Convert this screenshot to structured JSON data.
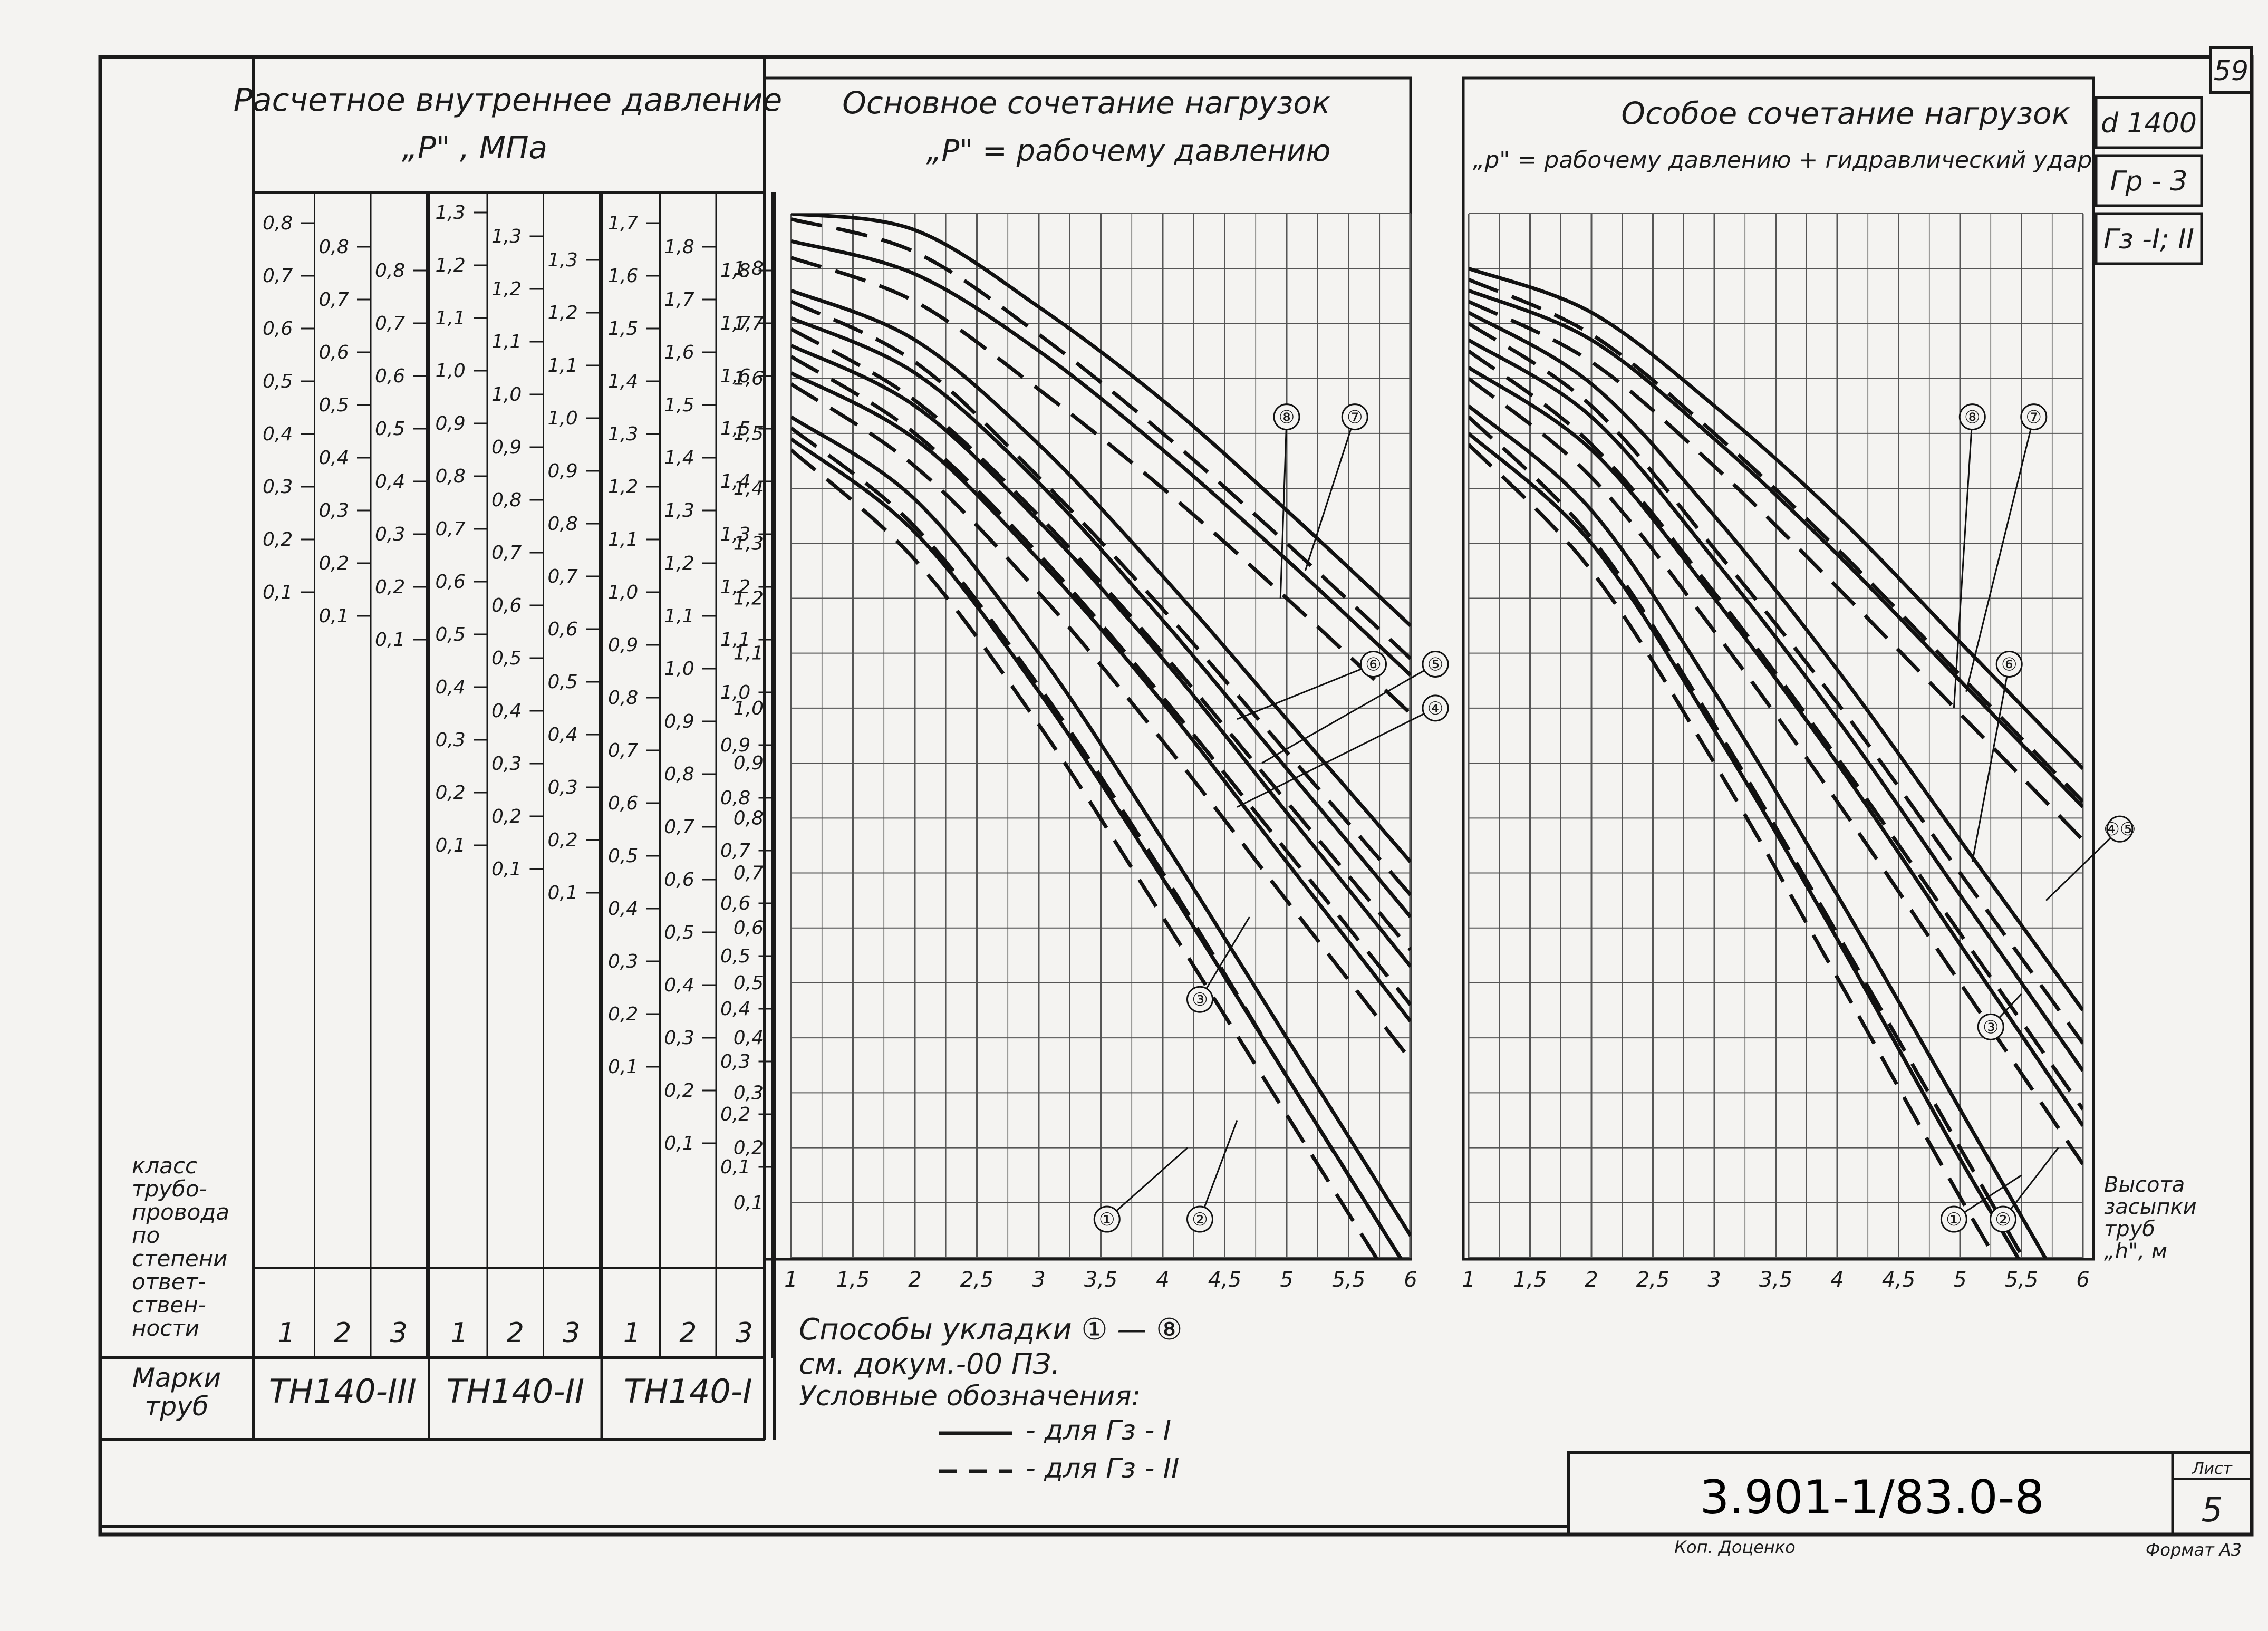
{
  "sheet": {
    "page_number": "59",
    "designation": "3.901-1/83.0-8",
    "sheet_label": "Лист",
    "sheet_number": "5",
    "author": "Коп. Доценко",
    "format": "Формат А3"
  },
  "right_header": [
    "d 1400",
    "Гр - 3",
    "Гз -I; II"
  ],
  "pressure_panel": {
    "title_line1": "Расчетное внутреннее давление",
    "title_line2": "„Р\" , МПа"
  },
  "left_labels": {
    "class_label": [
      "класс",
      "трубо-",
      "провода",
      "по",
      "степени",
      "ответ-",
      "ствен-",
      "ности"
    ],
    "marks_label": [
      "Марки",
      "труб"
    ]
  },
  "pipe_groups": [
    {
      "mark": "ТН140-III",
      "classes": [
        "1",
        "2",
        "3"
      ],
      "scales": [
        [
          "0,8",
          "0,7",
          "0,6",
          "0,5",
          "0,4",
          "0,3",
          "0,2",
          "0,1"
        ],
        [
          "0,8",
          "0,7",
          "0,6",
          "0,5",
          "0,4",
          "0,3",
          "0,2",
          "0,1"
        ],
        [
          "0,8",
          "0,7",
          "0,6",
          "0,5",
          "0,4",
          "0,3",
          "0,2",
          "0,1"
        ]
      ]
    },
    {
      "mark": "ТН140-II",
      "classes": [
        "1",
        "2",
        "3"
      ],
      "scales": [
        [
          "1,3",
          "1,2",
          "1,1",
          "1,0",
          "0,9",
          "0,8",
          "0,7",
          "0,6",
          "0,5",
          "0,4",
          "0,3",
          "0,2",
          "0,1"
        ],
        [
          "1,3",
          "1,2",
          "1,1",
          "1,0",
          "0,9",
          "0,8",
          "0,7",
          "0,6",
          "0,5",
          "0,4",
          "0,3",
          "0,2",
          "0,1"
        ],
        [
          "1,3",
          "1,2",
          "1,1",
          "1,0",
          "0,9",
          "0,8",
          "0,7",
          "0,6",
          "0,5",
          "0,4",
          "0,3",
          "0,2",
          "0,1"
        ]
      ]
    },
    {
      "mark": "ТН140-I",
      "classes": [
        "1",
        "2",
        "3"
      ],
      "scales": [
        [
          "1,7",
          "1,6",
          "1,5",
          "1,4",
          "1,3",
          "1,2",
          "1,1",
          "1,0",
          "0,9",
          "0,8",
          "0,7",
          "0,6",
          "0,5",
          "0,4",
          "0,3",
          "0,2",
          "0,1"
        ],
        [
          "1,8",
          "1,7",
          "1,6",
          "1,5",
          "1,4",
          "1,3",
          "1,2",
          "1,1",
          "1,0",
          "0,9",
          "0,8",
          "0,7",
          "0,6",
          "0,5",
          "0,4",
          "0,3",
          "0,2",
          "0,1"
        ],
        [
          "1,8",
          "1,7",
          "1,6",
          "1,5",
          "1,4",
          "1,3",
          "1,2",
          "1,1",
          "1,0",
          "0,9",
          "0,8",
          "0,7",
          "0,6",
          "0,5",
          "0,4",
          "0,3",
          "0,2",
          "0,1"
        ]
      ]
    }
  ],
  "legend": {
    "methods": "Способы укладки ① — ⑧",
    "see": "см. докум.-00 ПЗ.",
    "conventions": "Условные обозначения:",
    "solid": "- для Гз - I",
    "dashed": "- для Гз - II"
  },
  "axis_caption": [
    "Высота",
    "засыпки",
    "труб",
    "„h\", м"
  ],
  "chart_data": [
    {
      "type": "line",
      "title": "Основное сочетание нагрузок",
      "subtitle": "„Р\" = рабочему давлению",
      "xlabel": "Высота засыпки труб „h\", м",
      "ylabel": "„Р\", МПа",
      "x_ticks": [
        "1",
        "1,5",
        "2",
        "2,5",
        "3",
        "3,5",
        "4",
        "4,5",
        "5",
        "5,5",
        "6"
      ],
      "xlim": [
        1,
        6
      ],
      "ylim": [
        0,
        1.9
      ],
      "grid": true,
      "series": [
        {
          "name": "⑦",
          "x": [
            1,
            2,
            3,
            4,
            5,
            6
          ],
          "y_solid": [
            1.9,
            1.87,
            1.73,
            1.56,
            1.36,
            1.15
          ],
          "y_dashed": [
            1.89,
            1.83,
            1.68,
            1.5,
            1.3,
            1.09
          ]
        },
        {
          "name": "⑧",
          "x": [
            1,
            2,
            3,
            4,
            5,
            6
          ],
          "y_solid": [
            1.85,
            1.79,
            1.65,
            1.47,
            1.27,
            1.06
          ],
          "y_dashed": [
            1.82,
            1.74,
            1.58,
            1.4,
            1.2,
            0.99
          ]
        },
        {
          "name": "⑥",
          "x": [
            1,
            2,
            3,
            4,
            5,
            6
          ],
          "y_solid": [
            1.76,
            1.67,
            1.48,
            1.24,
            0.98,
            0.72
          ],
          "y_dashed": [
            1.74,
            1.63,
            1.42,
            1.18,
            0.92,
            0.66
          ]
        },
        {
          "name": "⑤",
          "x": [
            1,
            2,
            3,
            4,
            5,
            6
          ],
          "y_solid": [
            1.71,
            1.61,
            1.41,
            1.16,
            0.89,
            0.62
          ],
          "y_dashed": [
            1.69,
            1.56,
            1.35,
            1.1,
            0.83,
            0.56
          ]
        },
        {
          "name": "④",
          "x": [
            1,
            2,
            3,
            4,
            5,
            6
          ],
          "y_solid": [
            1.66,
            1.55,
            1.34,
            1.09,
            0.81,
            0.53
          ],
          "y_dashed": [
            1.64,
            1.5,
            1.28,
            1.02,
            0.74,
            0.46
          ]
        },
        {
          "name": "③",
          "x": [
            1,
            2,
            3,
            4,
            5,
            6
          ],
          "y_solid": [
            1.61,
            1.49,
            1.27,
            1.01,
            0.72,
            0.43
          ],
          "y_dashed": [
            1.59,
            1.44,
            1.21,
            0.94,
            0.65,
            0.36
          ]
        },
        {
          "name": "②",
          "x": [
            1,
            2,
            3,
            4,
            5,
            6
          ],
          "y_solid": [
            1.53,
            1.38,
            1.1,
            0.76,
            0.4,
            0.04
          ],
          "y_dashed": [
            1.51,
            1.33,
            1.04,
            0.7,
            0.33,
            -0.03
          ]
        },
        {
          "name": "①",
          "x": [
            1,
            2,
            3,
            4,
            5,
            6
          ],
          "y_solid": [
            1.49,
            1.32,
            1.03,
            0.69,
            0.33,
            -0.03
          ],
          "y_dashed": [
            1.47,
            1.27,
            0.97,
            0.62,
            0.26,
            -0.1
          ]
        }
      ]
    },
    {
      "type": "line",
      "title": "Особое сочетание нагрузок",
      "subtitle": "„р\" = рабочему давлению + гидравлический удар",
      "xlabel": "Высота засыпки труб „h\", м",
      "x_ticks": [
        "1",
        "1,5",
        "2",
        "2,5",
        "3",
        "3,5",
        "4",
        "4,5",
        "5",
        "5,5",
        "6"
      ],
      "xlim": [
        1,
        6
      ],
      "ylim": [
        0,
        1.9
      ],
      "grid": true,
      "series": [
        {
          "name": "⑦",
          "x": [
            1,
            2,
            3,
            4,
            5,
            6
          ],
          "y_solid": [
            1.8,
            1.72,
            1.55,
            1.35,
            1.12,
            0.89
          ],
          "y_dashed": [
            1.78,
            1.68,
            1.5,
            1.29,
            1.06,
            0.83
          ]
        },
        {
          "name": "⑧",
          "x": [
            1,
            2,
            3,
            4,
            5,
            6
          ],
          "y_solid": [
            1.76,
            1.67,
            1.49,
            1.28,
            1.05,
            0.82
          ],
          "y_dashed": [
            1.74,
            1.63,
            1.44,
            1.22,
            0.99,
            0.76
          ]
        },
        {
          "name": "⑥",
          "x": [
            1,
            2,
            3,
            4,
            5,
            6
          ],
          "y_solid": [
            1.72,
            1.59,
            1.35,
            1.07,
            0.76,
            0.45
          ],
          "y_dashed": [
            1.7,
            1.55,
            1.29,
            1.01,
            0.7,
            0.39
          ]
        },
        {
          "name": "④⑤",
          "x": [
            1,
            2,
            3,
            4,
            5,
            6
          ],
          "y_solid": [
            1.67,
            1.53,
            1.27,
            0.98,
            0.66,
            0.34
          ],
          "y_dashed": [
            1.65,
            1.48,
            1.21,
            0.91,
            0.59,
            0.27
          ]
        },
        {
          "name": "③",
          "x": [
            1,
            2,
            3,
            4,
            5,
            6
          ],
          "y_solid": [
            1.62,
            1.47,
            1.2,
            0.9,
            0.57,
            0.24
          ],
          "y_dashed": [
            1.6,
            1.42,
            1.14,
            0.83,
            0.5,
            0.17
          ]
        },
        {
          "name": "②",
          "x": [
            1,
            2,
            3,
            4,
            5,
            6
          ],
          "y_solid": [
            1.55,
            1.36,
            1.03,
            0.66,
            0.27,
            -0.12
          ],
          "y_dashed": [
            1.53,
            1.31,
            0.97,
            0.59,
            0.2,
            -0.19
          ]
        },
        {
          "name": "①",
          "x": [
            1,
            2,
            3,
            4,
            5,
            6
          ],
          "y_solid": [
            1.5,
            1.3,
            0.96,
            0.58,
            0.18,
            -0.2
          ],
          "y_dashed": [
            1.48,
            1.25,
            0.9,
            0.51,
            0.11,
            -0.27
          ]
        }
      ]
    }
  ]
}
